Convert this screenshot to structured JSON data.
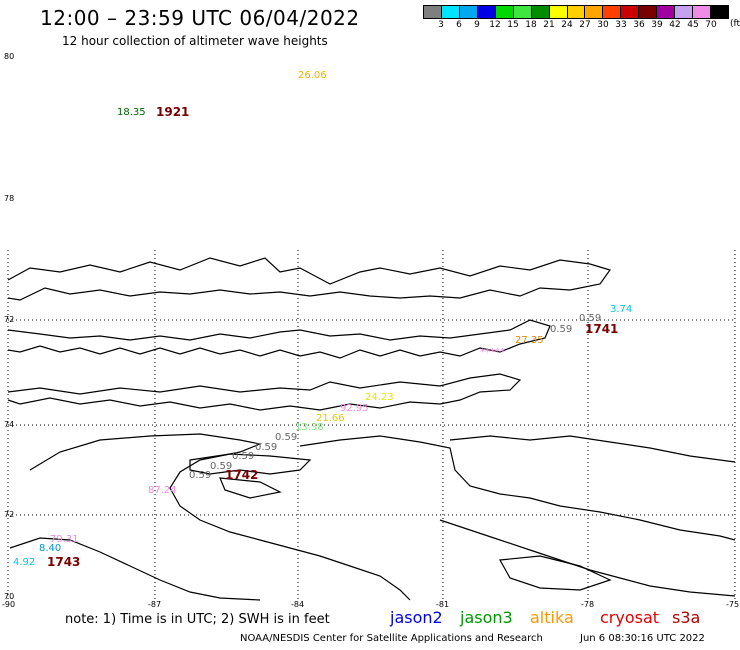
{
  "header": {
    "title": "12:00 – 23:59 UTC 06/04/2022",
    "subtitle": "12 hour collection of altimeter wave heights"
  },
  "color_scale": {
    "unit": "(ft)",
    "colors": [
      "#7f7f7f",
      "#00e5ff",
      "#00a8f0",
      "#0000e6",
      "#00d800",
      "#40e640",
      "#008c00",
      "#ffff00",
      "#ffd000",
      "#ffa500",
      "#ff4000",
      "#cc0000",
      "#7a0000",
      "#a000a0",
      "#c8a0f0",
      "#f08ce6",
      "#000000"
    ],
    "labels": [
      "3",
      "6",
      "9",
      "12",
      "15",
      "18",
      "21",
      "24",
      "27",
      "30",
      "33",
      "36",
      "39",
      "42",
      "45",
      "70"
    ]
  },
  "axes": {
    "lat_labels": [
      "80",
      "78",
      "72",
      "74",
      "72",
      "70"
    ],
    "lon_labels": [
      "-90",
      "-87",
      "-84",
      "-81",
      "-78",
      "-75"
    ]
  },
  "observations": [
    {
      "text": "26.06",
      "color": "#f0b400"
    },
    {
      "text": "18.35",
      "color": "#006400"
    },
    {
      "text": "1921",
      "color": "#7a0000"
    },
    {
      "text": "3.74",
      "color": "#00c8e6"
    },
    {
      "text": "0.59",
      "color": "#666666"
    },
    {
      "text": "0.59",
      "color": "#666666"
    },
    {
      "text": "1741",
      "color": "#7a0000"
    },
    {
      "text": "27.35",
      "color": "#e08c00"
    },
    {
      "text": "*****",
      "color": "#f08ce6"
    },
    {
      "text": "92.95",
      "color": "#f08ce6"
    },
    {
      "text": "24.23",
      "color": "#e6e600"
    },
    {
      "text": "21.66",
      "color": "#e6c800"
    },
    {
      "text": "13.38",
      "color": "#7ae67a"
    },
    {
      "text": "0.59",
      "color": "#666666"
    },
    {
      "text": "0.59",
      "color": "#666666"
    },
    {
      "text": "0.59",
      "color": "#666666"
    },
    {
      "text": "0.59",
      "color": "#666666"
    },
    {
      "text": "0.59",
      "color": "#666666"
    },
    {
      "text": "1742",
      "color": "#7a0000"
    },
    {
      "text": "87.24",
      "color": "#f08ce6"
    },
    {
      "text": "79.31",
      "color": "#f08ce6"
    },
    {
      "text": "8.40",
      "color": "#0096c8"
    },
    {
      "text": "4.92",
      "color": "#00c8e6"
    },
    {
      "text": "1743",
      "color": "#7a0000"
    }
  ],
  "footer": {
    "note": "note: 1) Time is in UTC; 2) SWH is in feet",
    "satellites": [
      {
        "name": "jason2",
        "color": "#0000e6"
      },
      {
        "name": "jason3",
        "color": "#009600"
      },
      {
        "name": "altika",
        "color": "#ff9600"
      },
      {
        "name": "cryosat",
        "color": "#e60000"
      },
      {
        "name": "s3a",
        "color": "#b40000"
      }
    ],
    "credit": "NOAA/NESDIS Center for Satellite Applications and Research",
    "timestamp": "Jun  6 08:30:16 UTC 2022"
  }
}
